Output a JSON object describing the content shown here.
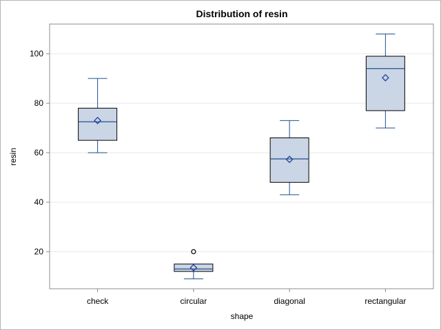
{
  "chart_data": {
    "type": "box",
    "title": "Distribution of resin",
    "xlabel": "shape",
    "ylabel": "resin",
    "categories": [
      "check",
      "circular",
      "diagonal",
      "rectangular"
    ],
    "y_ticks": [
      20,
      40,
      60,
      80,
      100
    ],
    "ylim": [
      5,
      112
    ],
    "grid": true,
    "boxes": [
      {
        "category": "check",
        "min": 60,
        "q1": 65,
        "median": 72.5,
        "q3": 78,
        "max": 90,
        "mean": 73,
        "outliers": []
      },
      {
        "category": "circular",
        "min": 9,
        "q1": 12,
        "median": 13,
        "q3": 15,
        "max": 15,
        "mean": 13.5,
        "outliers": [
          20
        ]
      },
      {
        "category": "diagonal",
        "min": 43,
        "q1": 48,
        "median": 57.5,
        "q3": 66,
        "max": 73,
        "mean": 57.3,
        "outliers": []
      },
      {
        "category": "rectangular",
        "min": 70,
        "q1": 77,
        "median": 94,
        "q3": 99,
        "max": 108,
        "mean": 90.3,
        "outliers": []
      }
    ],
    "colors": {
      "box_fill": "#cad5e5",
      "box_stroke": "#000000",
      "whisker": "#1f4e8c",
      "median": "#1f4e8c",
      "mean_marker": "#1f3fa0",
      "outlier": "#000000",
      "grid": "#e6e6e6",
      "axis": "#8c8c8c"
    }
  }
}
